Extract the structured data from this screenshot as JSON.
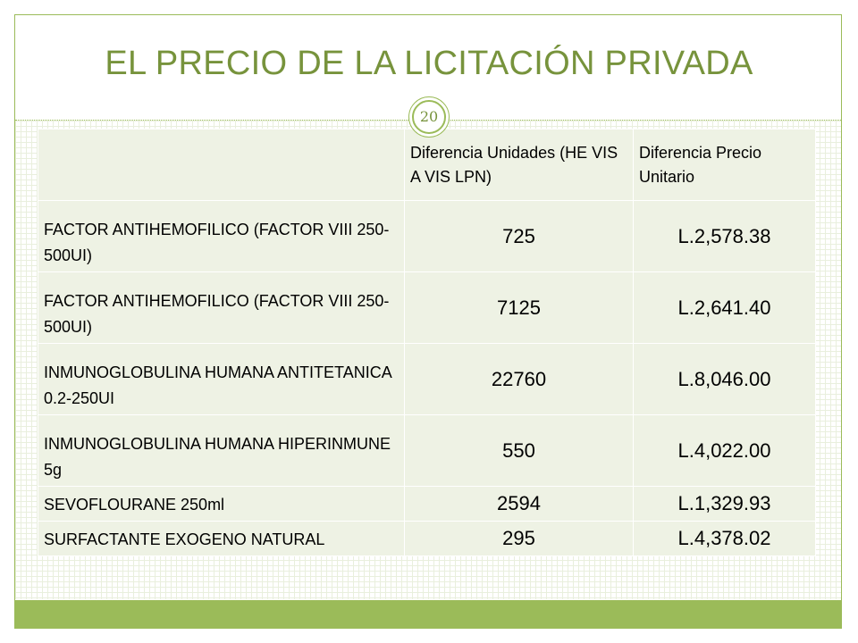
{
  "slide": {
    "title": "EL PRECIO DE LA LICITACIÓN PRIVADA",
    "page_number": "20"
  },
  "colors": {
    "accent": "#9bbb59",
    "title": "#77933c",
    "table_fill": "#eef2e4"
  },
  "table": {
    "headers": [
      "",
      "Diferencia Unidades (HE VIS A VIS LPN)",
      "Diferencia Precio Unitario"
    ],
    "rows": [
      {
        "name": "FACTOR ANTIHEMOFILICO (FACTOR VIII 250-500UI)",
        "units": "725",
        "price": "L.2,578.38"
      },
      {
        "name": "FACTOR ANTIHEMOFILICO (FACTOR VIII 250-500UI)",
        "units": "7125",
        "price": "L.2,641.40"
      },
      {
        "name": "INMUNOGLOBULINA HUMANA ANTITETANICA 0.2-250UI",
        "units": "22760",
        "price": "L.8,046.00"
      },
      {
        "name": "INMUNOGLOBULINA HUMANA HIPERINMUNE 5g",
        "units": "550",
        "price": "L.4,022.00"
      },
      {
        "name": "SEVOFLOURANE 250ml",
        "units": "2594",
        "price": "L.1,329.93"
      },
      {
        "name": "SURFACTANTE EXOGENO NATURAL",
        "units": "295",
        "price": "L.4,378.02"
      }
    ]
  }
}
